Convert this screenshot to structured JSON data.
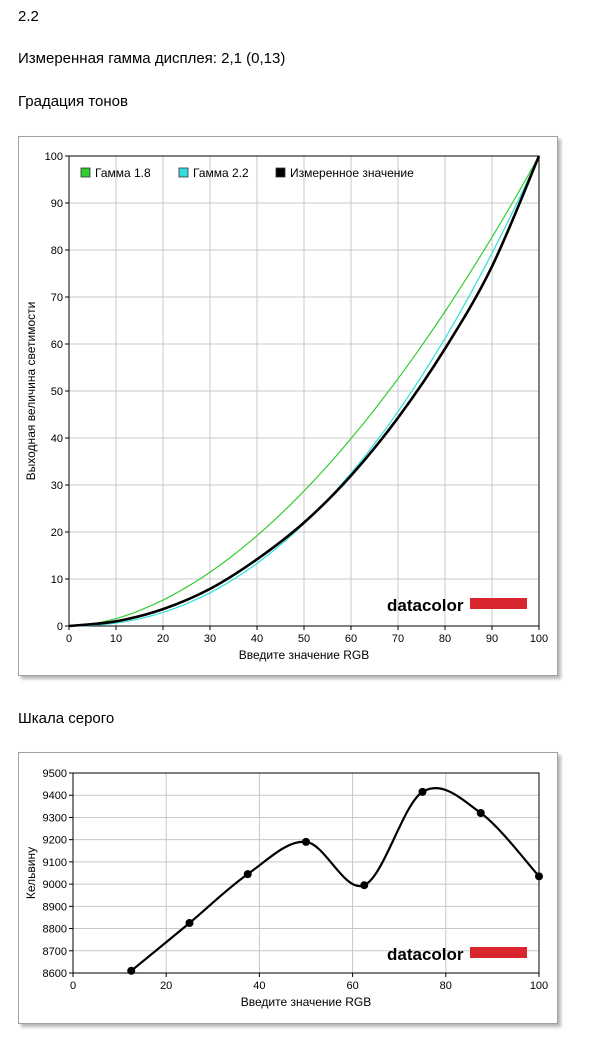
{
  "header": {
    "version": "2.2",
    "measured_gamma": "Измеренная гамма дисплея: 2,1 (0,13)",
    "section1_title": "Градация тонов",
    "section2_title": "Шкала серого"
  },
  "brand": {
    "name": "datacolor",
    "color": "#d9252e"
  },
  "chart_data": [
    {
      "type": "line",
      "title": "",
      "xlabel": "Введите значение RGB",
      "ylabel": "Выходная величина светимости",
      "xlim": [
        0,
        100
      ],
      "ylim": [
        0,
        100
      ],
      "xticks": [
        "0",
        "10",
        "20",
        "30",
        "40",
        "50",
        "60",
        "70",
        "80",
        "90",
        "100"
      ],
      "yticks": [
        "0",
        "10",
        "20",
        "30",
        "40",
        "50",
        "60",
        "70",
        "80",
        "90",
        "100"
      ],
      "grid": true,
      "legend": "top-left",
      "series": [
        {
          "name": "Гамма 1.8",
          "color": "#33cc33",
          "gamma": 1.8,
          "x": [
            0,
            10,
            20,
            30,
            40,
            50,
            60,
            70,
            80,
            90,
            100
          ],
          "values": [
            0,
            1.6,
            5.5,
            11.5,
            19.2,
            28.7,
            39.9,
            52.6,
            66.9,
            82.7,
            100
          ]
        },
        {
          "name": "Гамма 2.2",
          "color": "#33dddd",
          "gamma": 2.2,
          "x": [
            0,
            10,
            20,
            30,
            40,
            50,
            60,
            70,
            80,
            90,
            100
          ],
          "values": [
            0,
            0.6,
            2.9,
            7.1,
            13.3,
            21.8,
            32.5,
            45.6,
            61.2,
            79.3,
            100
          ]
        },
        {
          "name": "Измеренное значение",
          "color": "#000000",
          "x": [
            0,
            10,
            20,
            30,
            40,
            50,
            60,
            70,
            80,
            90,
            100
          ],
          "values": [
            0,
            1.0,
            3.6,
            7.9,
            14.2,
            22.0,
            32.0,
            44.3,
            59.0,
            76.5,
            100
          ]
        }
      ]
    },
    {
      "type": "line",
      "title": "",
      "xlabel": "Введите значение RGB",
      "ylabel": "Кельвину",
      "xlim": [
        0,
        100
      ],
      "ylim": [
        8600,
        9500
      ],
      "xticks": [
        "0",
        "20",
        "40",
        "60",
        "80",
        "100"
      ],
      "yticks": [
        "8600",
        "8700",
        "8800",
        "8900",
        "9000",
        "9100",
        "9200",
        "9300",
        "9400",
        "9500"
      ],
      "grid": true,
      "series": [
        {
          "name": "",
          "color": "#000000",
          "x": [
            12.5,
            25,
            37.5,
            50,
            62.5,
            75,
            87.5,
            100
          ],
          "values": [
            8610,
            8825,
            9045,
            9190,
            8995,
            9415,
            9320,
            9035
          ]
        }
      ]
    }
  ]
}
